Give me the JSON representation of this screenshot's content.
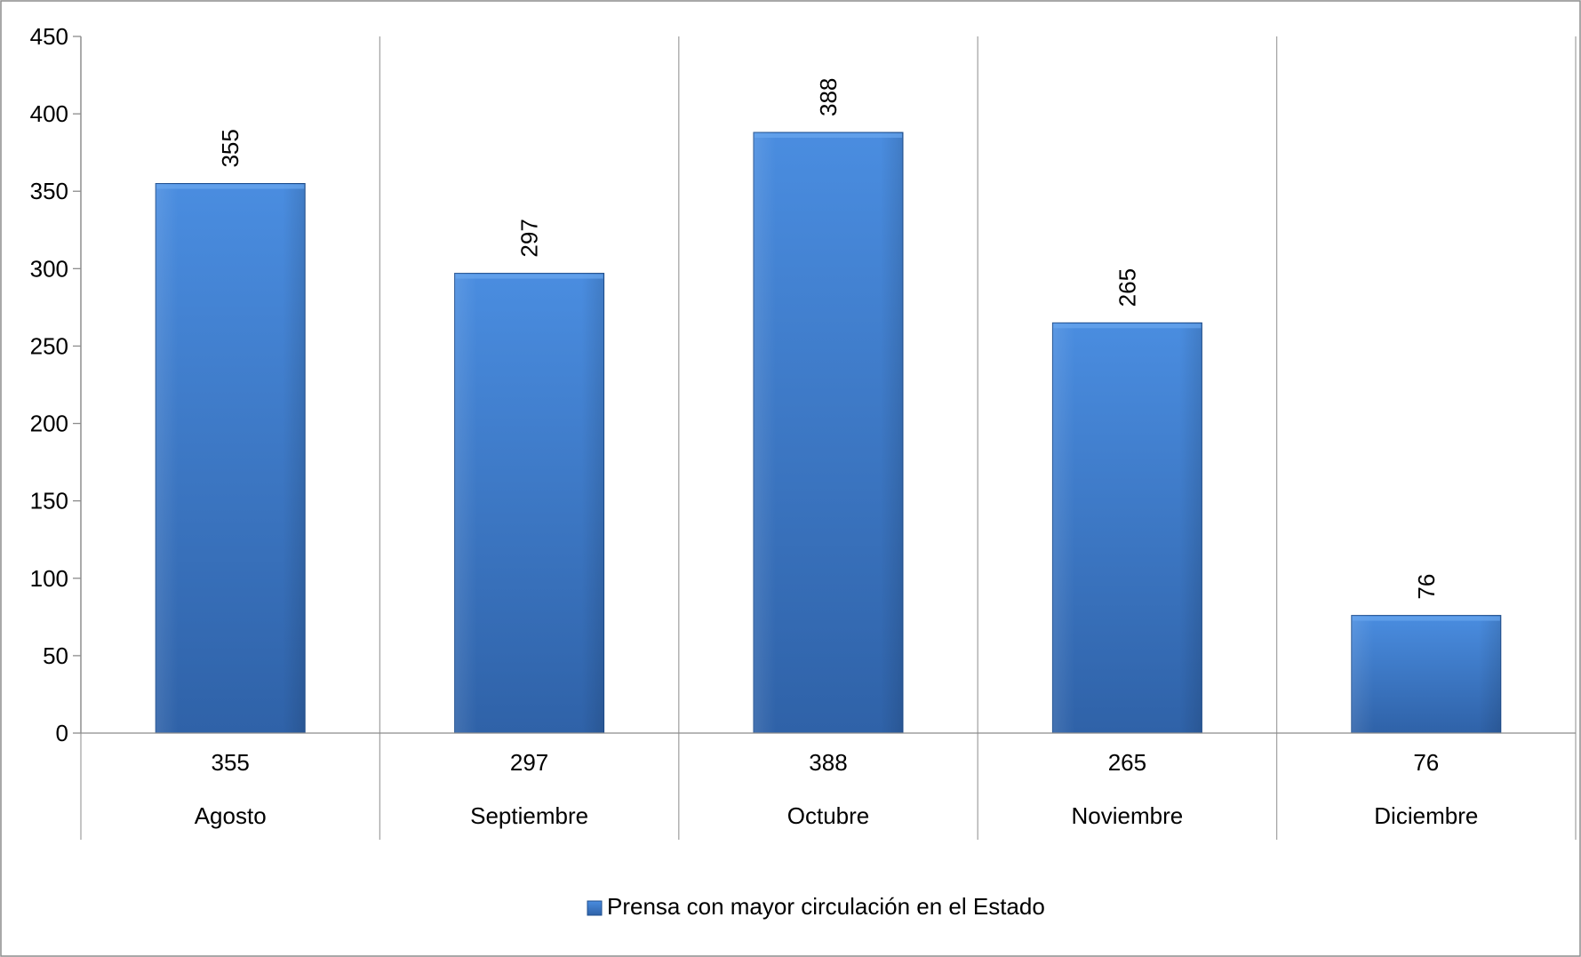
{
  "chart_data": {
    "type": "bar",
    "title": "",
    "xlabel": "",
    "ylabel": "",
    "categories": [
      "Agosto",
      "Septiembre",
      "Octubre",
      "Noviembre",
      "Diciembre"
    ],
    "series": [
      {
        "name": "Prensa con mayor circulación en el Estado",
        "values": [
          355,
          297,
          388,
          265,
          76
        ],
        "color": "#3c7bc8"
      }
    ],
    "ylim": [
      0,
      450
    ],
    "yticks": [
      0,
      50,
      100,
      150,
      200,
      250,
      300,
      350,
      400,
      450
    ],
    "data_labels": [
      "355",
      "297",
      "388",
      "265",
      "76"
    ],
    "data_table_values": [
      "355",
      "297",
      "388",
      "265",
      "76"
    ],
    "grid": "vertical category separators",
    "legend": {
      "position": "bottom",
      "entries": [
        "Prensa con mayor circulación en el Estado"
      ]
    }
  },
  "colors": {
    "bar_top": "#4a8de0",
    "bar_bottom": "#2f62a8",
    "bar_edge": "#1f4f8f",
    "axis": "#8c8c8c",
    "gridline": "#a6a6a6",
    "border": "#8c8c8c"
  }
}
